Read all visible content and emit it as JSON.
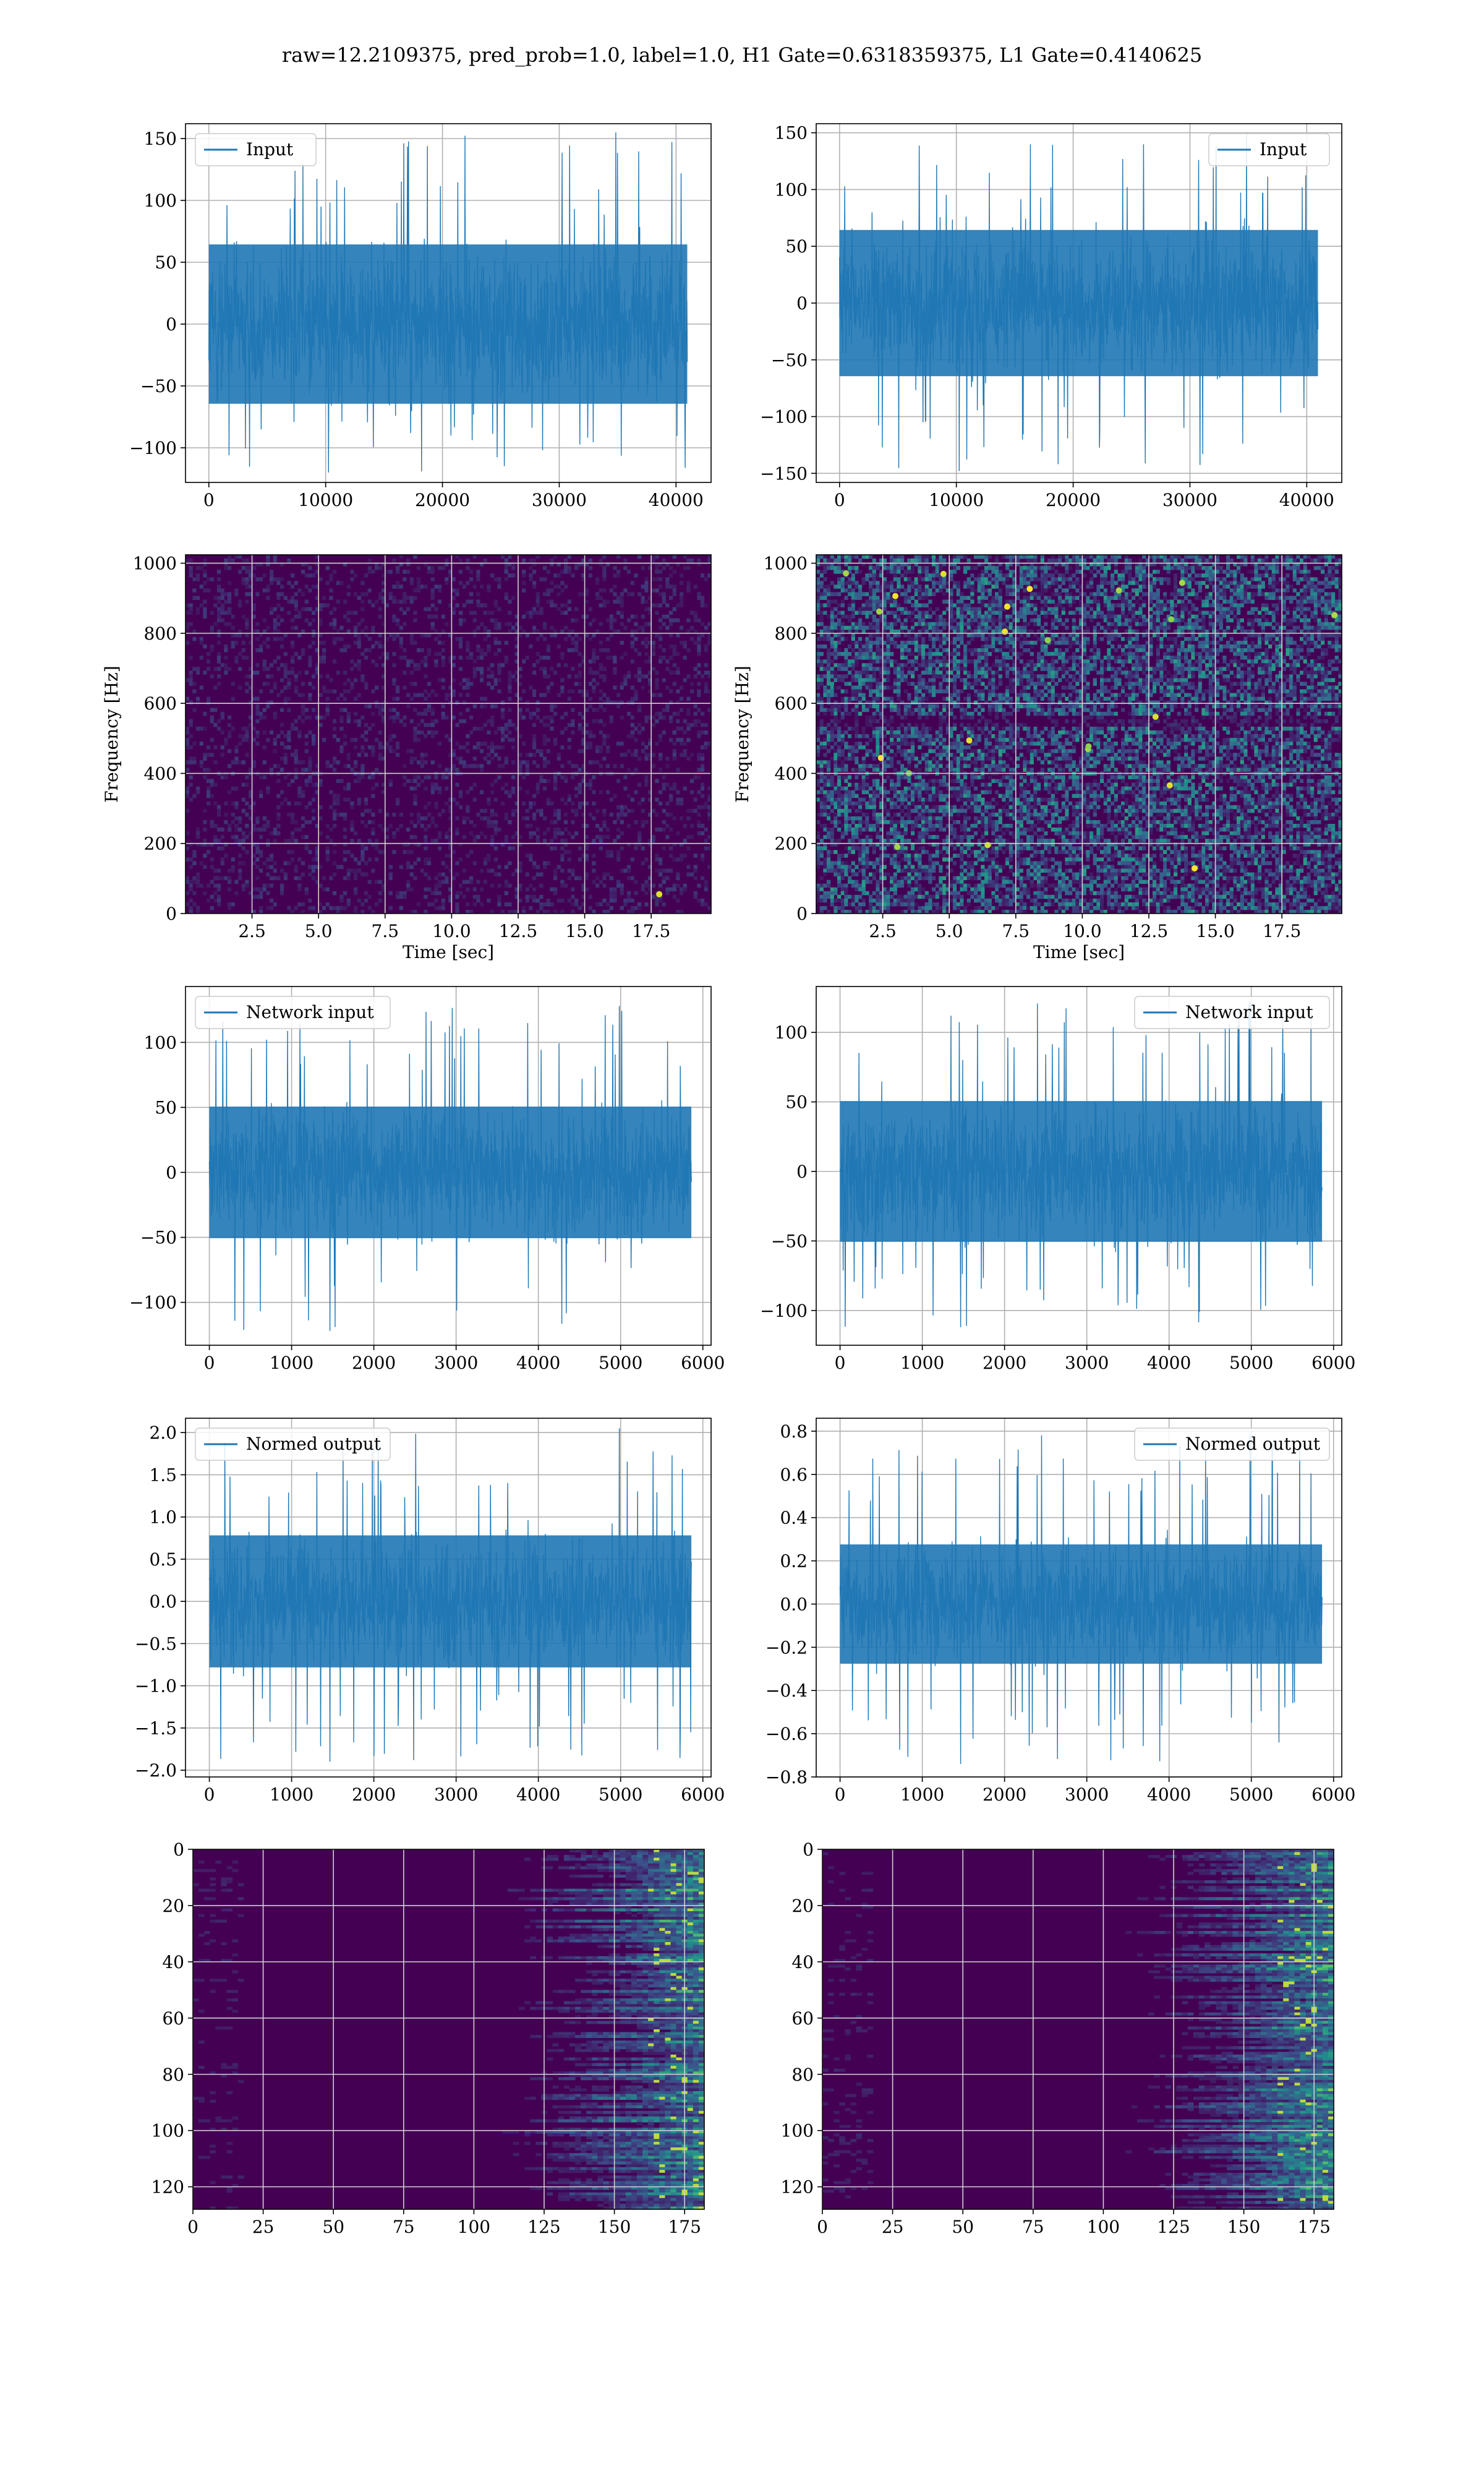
{
  "figure": {
    "suptitle": "raw=12.2109375, pred_prob=1.0, label=1.0, H1 Gate=0.6318359375, L1 Gate=0.4140625",
    "colors": {
      "line": "#1f77b4",
      "grid": "#b0b0b0",
      "viridis_low": "#440154",
      "viridis_mid": "#21918c",
      "viridis_high": "#fde725"
    }
  },
  "chart_data": [
    {
      "id": "r1c1",
      "type": "line",
      "legend": "Input",
      "legend_loc": "upper-left",
      "xlim": [
        -2000,
        43000
      ],
      "ylim": [
        -128,
        162
      ],
      "xticks": [
        0,
        10000,
        20000,
        30000,
        40000
      ],
      "yticks": [
        -100,
        -50,
        0,
        50,
        100,
        150
      ],
      "series": [
        {
          "name": "Input",
          "n_samples": 40960,
          "band": [
            -70,
            70
          ],
          "min": -120,
          "max": 155
        }
      ],
      "grid": true
    },
    {
      "id": "r1c2",
      "type": "line",
      "legend": "Input",
      "legend_loc": "upper-right",
      "xlim": [
        -2000,
        43000
      ],
      "ylim": [
        -158,
        158
      ],
      "xticks": [
        0,
        10000,
        20000,
        30000,
        40000
      ],
      "yticks": [
        -150,
        -100,
        -50,
        0,
        50,
        100,
        150
      ],
      "series": [
        {
          "name": "Input",
          "n_samples": 40960,
          "band": [
            -70,
            70
          ],
          "min": -148,
          "max": 150
        }
      ],
      "grid": true
    },
    {
      "id": "r2c1",
      "type": "heatmap",
      "xlabel": "Time [sec]",
      "ylabel": "Frequency [Hz]",
      "xlim": [
        0,
        19.75
      ],
      "ylim": [
        0,
        1024
      ],
      "xticks": [
        2.5,
        5.0,
        7.5,
        10.0,
        12.5,
        15.0,
        17.5
      ],
      "yticks": [
        0,
        200,
        400,
        600,
        800,
        1000
      ],
      "colormap": "viridis",
      "note_bright_point": {
        "t": 17.8,
        "f": 55
      },
      "grid": true
    },
    {
      "id": "r2c2",
      "type": "heatmap",
      "xlabel": "Time [sec]",
      "ylabel": "Frequency [Hz]",
      "xlim": [
        0,
        19.75
      ],
      "ylim": [
        0,
        1024
      ],
      "xticks": [
        2.5,
        5.0,
        7.5,
        10.0,
        12.5,
        15.0,
        17.5
      ],
      "yticks": [
        0,
        200,
        400,
        600,
        800,
        1000
      ],
      "colormap": "viridis",
      "grid": true
    },
    {
      "id": "r3c1",
      "type": "line",
      "legend": "Network input",
      "legend_loc": "upper-left",
      "xlim": [
        -290,
        6100
      ],
      "ylim": [
        -133,
        143
      ],
      "xticks": [
        0,
        1000,
        2000,
        3000,
        4000,
        5000,
        6000
      ],
      "yticks": [
        -100,
        -50,
        0,
        50,
        100
      ],
      "series": [
        {
          "name": "Network input",
          "n_samples": 5860,
          "band": [
            -55,
            55
          ],
          "min": -122,
          "max": 128
        }
      ],
      "grid": true
    },
    {
      "id": "r3c2",
      "type": "line",
      "legend": "Network input",
      "legend_loc": "upper-right",
      "xlim": [
        -290,
        6100
      ],
      "ylim": [
        -125,
        133
      ],
      "xticks": [
        0,
        1000,
        2000,
        3000,
        4000,
        5000,
        6000
      ],
      "yticks": [
        -100,
        -50,
        0,
        50,
        100
      ],
      "series": [
        {
          "name": "Network input",
          "n_samples": 5860,
          "band": [
            -55,
            55
          ],
          "min": -112,
          "max": 122
        }
      ],
      "grid": true
    },
    {
      "id": "r4c1",
      "type": "line",
      "legend": "Normed output",
      "legend_loc": "upper-left",
      "xlim": [
        -290,
        6100
      ],
      "ylim": [
        -2.08,
        2.17
      ],
      "xticks": [
        0,
        1000,
        2000,
        3000,
        4000,
        5000,
        6000
      ],
      "yticks": [
        -2.0,
        -1.5,
        -1.0,
        -0.5,
        0.0,
        0.5,
        1.0,
        1.5,
        2.0
      ],
      "series": [
        {
          "name": "Normed output",
          "n_samples": 5860,
          "band": [
            -0.85,
            0.85
          ],
          "min": -1.9,
          "max": 2.05
        }
      ],
      "grid": true
    },
    {
      "id": "r4c2",
      "type": "line",
      "legend": "Normed output",
      "legend_loc": "upper-right",
      "xlim": [
        -290,
        6100
      ],
      "ylim": [
        -0.8,
        0.86
      ],
      "xticks": [
        0,
        1000,
        2000,
        3000,
        4000,
        5000,
        6000
      ],
      "yticks": [
        -0.8,
        -0.6,
        -0.4,
        -0.2,
        0.0,
        0.2,
        0.4,
        0.6,
        0.8
      ],
      "series": [
        {
          "name": "Normed output",
          "n_samples": 5860,
          "band": [
            -0.3,
            0.3
          ],
          "min": -0.74,
          "max": 0.79
        }
      ],
      "grid": true
    },
    {
      "id": "r5c1",
      "type": "heatmap",
      "xlim": [
        0,
        182
      ],
      "ylim": [
        128,
        0
      ],
      "xticks": [
        0,
        25,
        50,
        75,
        100,
        125,
        150,
        175
      ],
      "yticks": [
        0,
        20,
        40,
        60,
        80,
        100,
        120
      ],
      "colormap": "viridis",
      "grid": true
    },
    {
      "id": "r5c2",
      "type": "heatmap",
      "xlim": [
        0,
        182
      ],
      "ylim": [
        128,
        0
      ],
      "xticks": [
        0,
        25,
        50,
        75,
        100,
        125,
        150,
        175
      ],
      "yticks": [
        0,
        20,
        40,
        60,
        80,
        100,
        120
      ],
      "colormap": "viridis",
      "grid": true
    }
  ]
}
